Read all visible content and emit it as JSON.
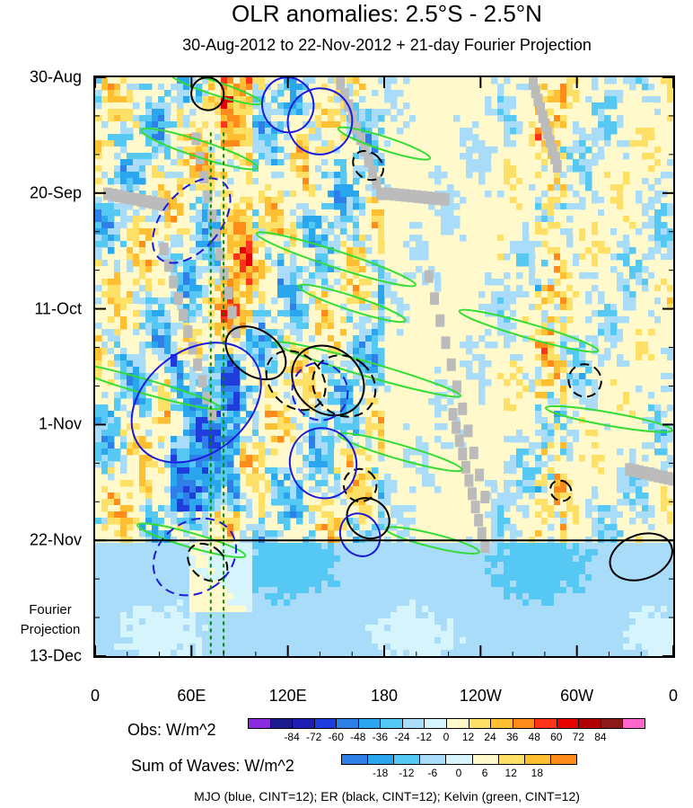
{
  "title": "OLR anomalies: 2.5°S - 2.5°N",
  "subtitle": "30-Aug-2012 to 22-Nov-2012 + 21-day Fourier Projection",
  "fourier_note_line1": "Fourier",
  "fourier_note_line2": "Projection",
  "footnote": "MJO (blue, CINT=12); ER (black, CINT=12); Kelvin (green, CINT=12)",
  "colors": {
    "background_field": "#fff9cc",
    "mjo": "#1a1adc",
    "er": "#000000",
    "kelvin": "#33dd33",
    "projection_boundary": "#000000",
    "longitude_markers": "#008800",
    "missing_data": "#bbbbbb"
  },
  "obs_colorbar": {
    "title": "Obs: W/m^2",
    "labels": [
      "-84",
      "-72",
      "-60",
      "-48",
      "-36",
      "-24",
      "-12",
      "0",
      "12",
      "24",
      "36",
      "48",
      "60",
      "72",
      "84"
    ],
    "colors": [
      "#8a2be2",
      "#1a1a8c",
      "#1e1eb4",
      "#1f3cdc",
      "#2f7fe8",
      "#29a6ee",
      "#55c8f4",
      "#a8dcf8",
      "#d6f4fc",
      "#fff9cc",
      "#ffe066",
      "#ffbf33",
      "#ff8c1a",
      "#ff3319",
      "#e60000",
      "#b00000",
      "#8c1a1a",
      "#ff66cc"
    ]
  },
  "waves_colorbar": {
    "title": "Sum of Waves: W/m^2",
    "labels": [
      "-18",
      "-12",
      "-6",
      "0",
      "6",
      "12",
      "18"
    ],
    "colors": [
      "#2f7fe8",
      "#29a6ee",
      "#55c8f4",
      "#a8dcf8",
      "#d6f4fc",
      "#fff9cc",
      "#ffe066",
      "#ffbf33",
      "#ff8c1a"
    ]
  },
  "chart_data": {
    "type": "heatmap",
    "title": "OLR anomalies: 2.5°S - 2.5°N",
    "subtitle": "30-Aug-2012 to 22-Nov-2012 + 21-day Fourier Projection",
    "x_axis": {
      "tick_labels": [
        "0",
        "60E",
        "120E",
        "180",
        "120W",
        "60W",
        "0"
      ],
      "tick_longitudes_east": [
        0,
        60,
        120,
        180,
        240,
        300,
        360
      ],
      "range": [
        0,
        360
      ]
    },
    "y_axis": {
      "tick_labels": [
        "30-Aug",
        "20-Sep",
        "11-Oct",
        "1-Nov",
        "22-Nov",
        "13-Dec"
      ],
      "tick_days_since_start": [
        0,
        21,
        42,
        63,
        84,
        105
      ],
      "range": [
        0,
        105
      ],
      "reversed": true
    },
    "projection_start": "22-Nov",
    "longitude_markers": [
      72,
      80
    ],
    "mjo_contours": [
      {
        "lon": 120,
        "day": 5,
        "rlon": 16,
        "rday": 5,
        "angle": -10,
        "dashed": false
      },
      {
        "lon": 140,
        "day": 8,
        "rlon": 20,
        "rday": 6,
        "angle": 15,
        "dashed": false
      },
      {
        "lon": 60,
        "day": 26,
        "rlon": 18,
        "rday": 9,
        "angle": 40,
        "dashed": true
      },
      {
        "lon": 63,
        "day": 59,
        "rlon": 32,
        "rday": 13,
        "angle": 52,
        "dashed": false
      },
      {
        "lon": 140,
        "day": 57,
        "rlon": 18,
        "rday": 5,
        "angle": 65,
        "dashed": true
      },
      {
        "lon": 142,
        "day": 70,
        "rlon": 22,
        "rday": 6,
        "angle": 70,
        "dashed": false
      },
      {
        "lon": 62,
        "day": 87,
        "rlon": 22,
        "rday": 8,
        "angle": 55,
        "dashed": true
      },
      {
        "lon": 165,
        "day": 83,
        "rlon": 12,
        "rday": 4,
        "angle": -30,
        "dashed": false
      }
    ],
    "er_contours": [
      {
        "lon": 70,
        "day": 3,
        "rlon": 10,
        "rday": 3,
        "angle": -40,
        "dashed": false
      },
      {
        "lon": 170,
        "day": 16,
        "rlon": 8,
        "rday": 3,
        "angle": -50,
        "dashed": true
      },
      {
        "lon": 100,
        "day": 50,
        "rlon": 14,
        "rday": 6,
        "angle": -55,
        "dashed": false
      },
      {
        "lon": 125,
        "day": 55,
        "rlon": 16,
        "rday": 6,
        "angle": -45,
        "dashed": true
      },
      {
        "lon": 145,
        "day": 55,
        "rlon": 20,
        "rday": 7,
        "angle": -50,
        "dashed": false
      },
      {
        "lon": 155,
        "day": 56,
        "rlon": 18,
        "rday": 6,
        "angle": -50,
        "dashed": true
      },
      {
        "lon": 165,
        "day": 74,
        "rlon": 10,
        "rday": 3,
        "angle": -55,
        "dashed": true
      },
      {
        "lon": 170,
        "day": 80,
        "rlon": 12,
        "rday": 4,
        "angle": -55,
        "dashed": false
      },
      {
        "lon": 305,
        "day": 55,
        "rlon": 10,
        "rday": 3,
        "angle": -50,
        "dashed": true
      },
      {
        "lon": 290,
        "day": 75,
        "rlon": 6,
        "rday": 2,
        "angle": -50,
        "dashed": true
      },
      {
        "lon": 340,
        "day": 87,
        "rlon": 20,
        "rday": 4,
        "angle": -20,
        "dashed": false
      },
      {
        "lon": 70,
        "day": 88,
        "rlon": 10,
        "rday": 4,
        "angle": -50,
        "dashed": true
      }
    ],
    "kelvin_contours": [
      {
        "lon": 75,
        "day": 2,
        "rlon": 30,
        "rday": 1.2,
        "angle": 18,
        "dashed": false
      },
      {
        "lon": 180,
        "day": 12,
        "rlon": 30,
        "rday": 1.2,
        "angle": 18,
        "dashed": false
      },
      {
        "lon": 65,
        "day": 13,
        "rlon": 38,
        "rday": 1.5,
        "angle": 18,
        "dashed": false
      },
      {
        "lon": 150,
        "day": 33,
        "rlon": 52,
        "rday": 1.5,
        "angle": 18,
        "dashed": false
      },
      {
        "lon": 160,
        "day": 41,
        "rlon": 35,
        "rday": 1.3,
        "angle": 18,
        "dashed": false
      },
      {
        "lon": 270,
        "day": 46,
        "rlon": 45,
        "rday": 1.3,
        "angle": 16,
        "dashed": false
      },
      {
        "lon": 170,
        "day": 53,
        "rlon": 60,
        "rday": 1.3,
        "angle": 16,
        "dashed": false
      },
      {
        "lon": 30,
        "day": 56,
        "rlon": 50,
        "rday": 1.3,
        "angle": 16,
        "dashed": false
      },
      {
        "lon": 320,
        "day": 62,
        "rlon": 40,
        "rday": 1.2,
        "angle": 10,
        "dashed": false
      },
      {
        "lon": 190,
        "day": 68,
        "rlon": 40,
        "rday": 1.3,
        "angle": 16,
        "dashed": false
      },
      {
        "lon": 60,
        "day": 84,
        "rlon": 35,
        "rday": 1.3,
        "angle": 16,
        "dashed": false
      },
      {
        "lon": 210,
        "day": 84,
        "rlon": 30,
        "rday": 1.2,
        "angle": 14,
        "dashed": false
      }
    ]
  }
}
